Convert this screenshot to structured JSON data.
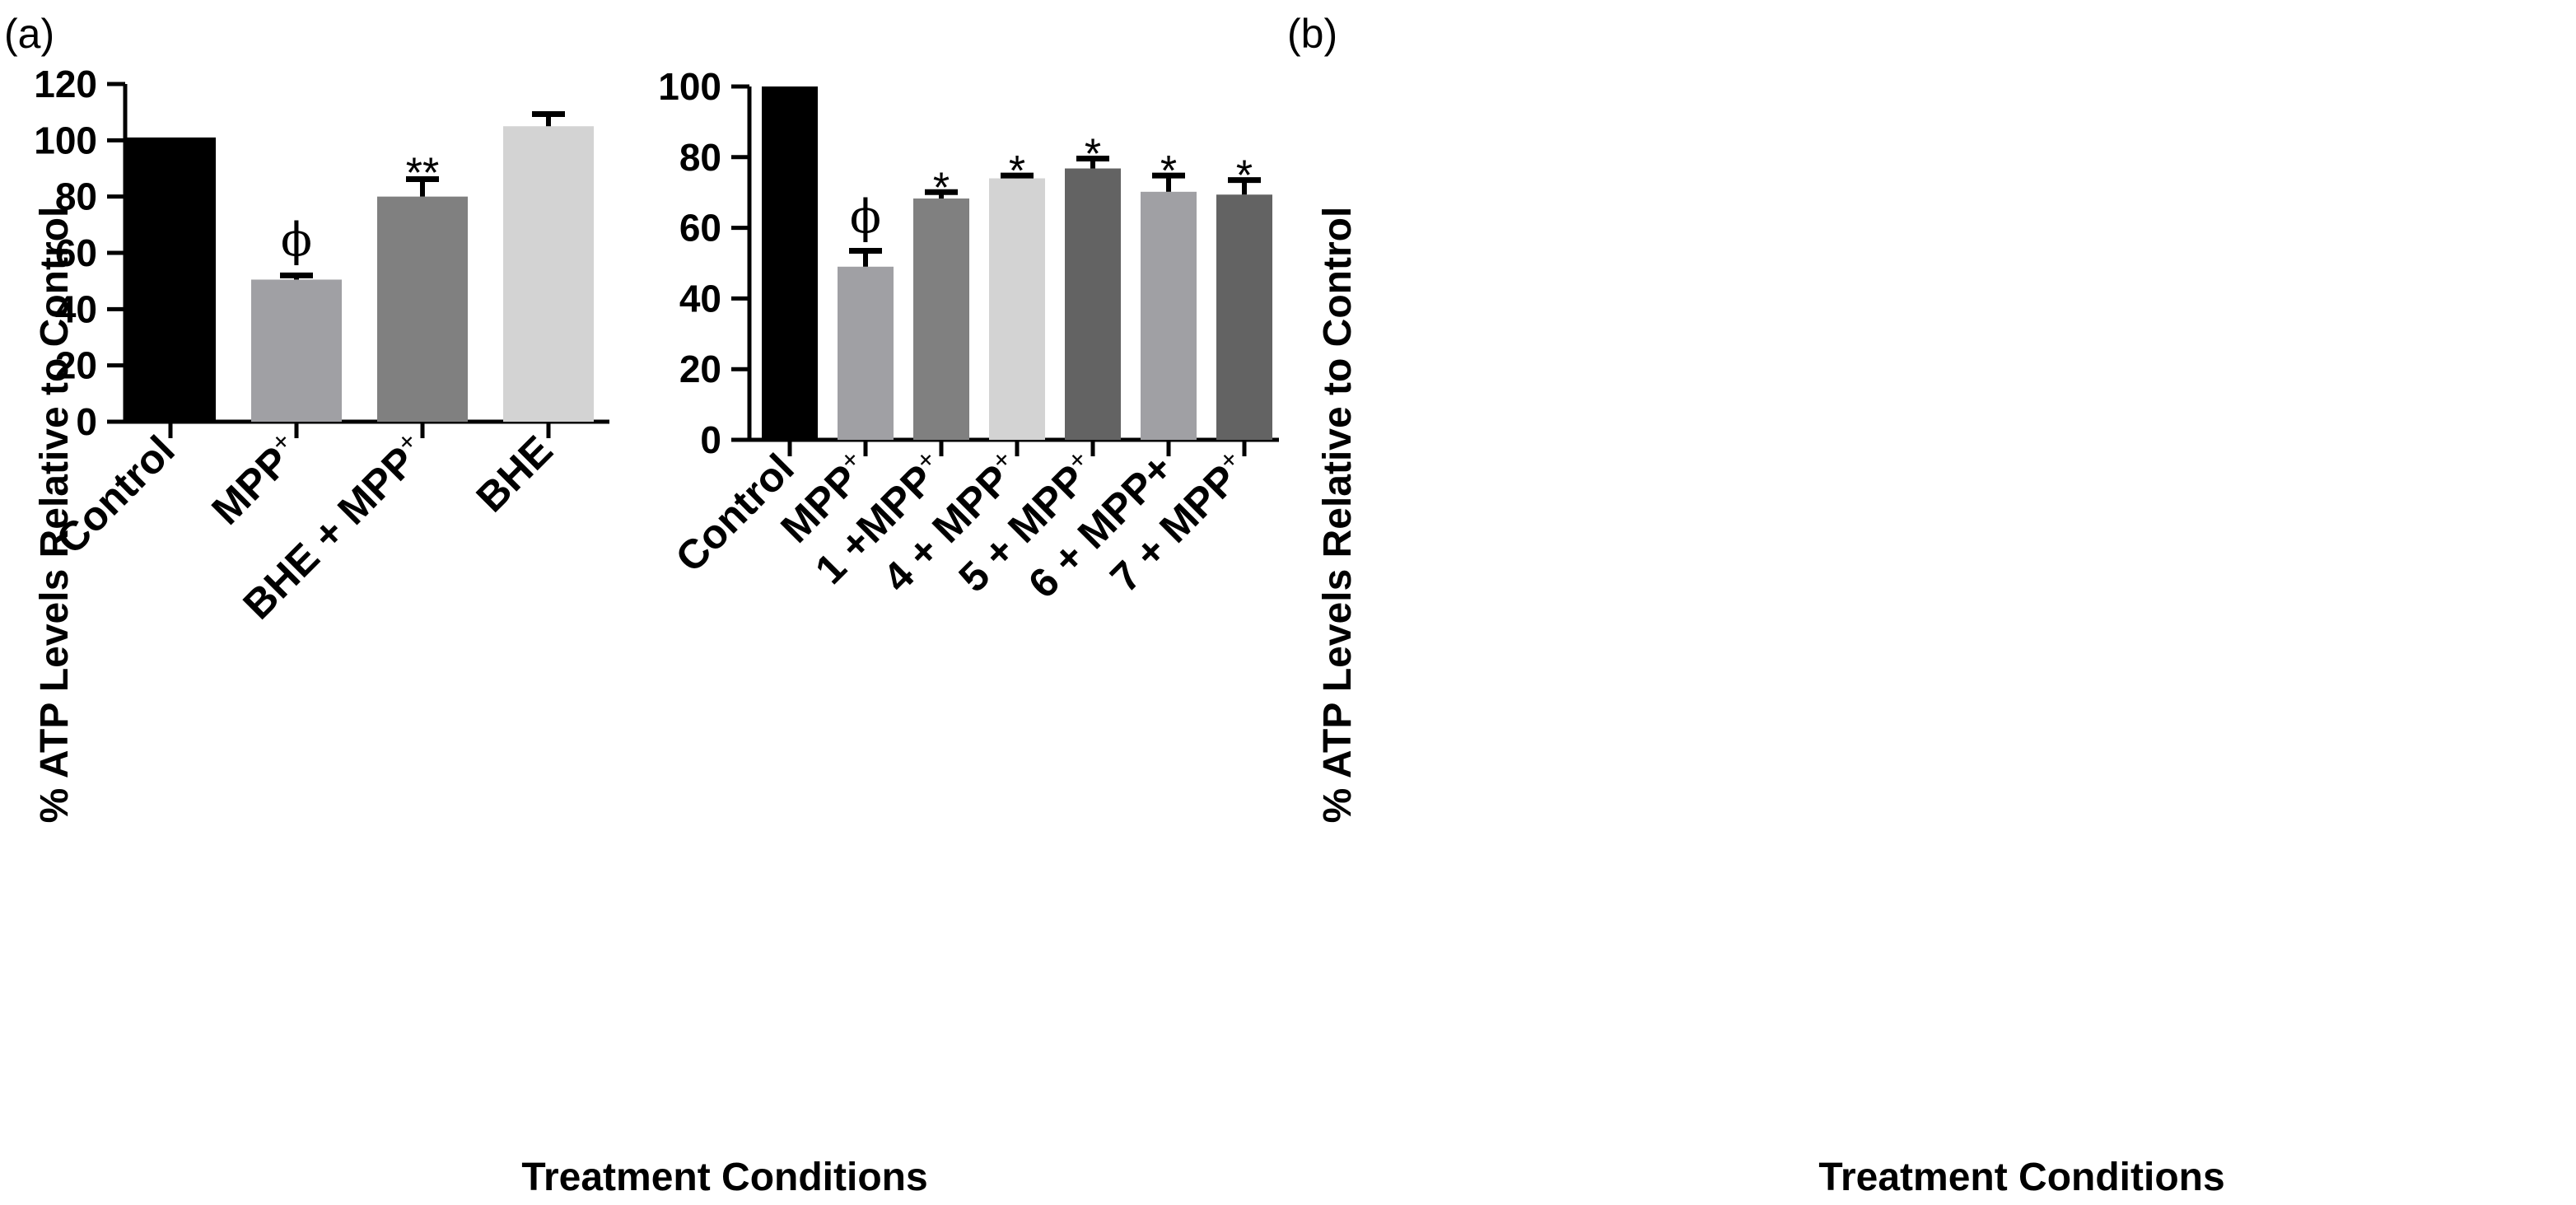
{
  "chart_data": [
    {
      "type": "bar",
      "panel": "(a)",
      "categories": [
        "Control",
        "MPP",
        "BHE + MPP",
        "BHE"
      ],
      "category_superscripts": [
        "",
        "+",
        "+",
        ""
      ],
      "values": [
        101,
        50.5,
        80,
        105
      ],
      "errors": [
        0,
        1.5,
        6.2,
        4.3
      ],
      "annotations": [
        "",
        "ϕ",
        "**",
        ""
      ],
      "colors": [
        "#000000",
        "#a0a0a4",
        "#808080",
        "#d3d3d3"
      ],
      "ylim": [
        0,
        120
      ],
      "yticks": [
        0,
        20,
        40,
        60,
        80,
        100,
        120
      ],
      "ylabel": "% ATP Levels Relative to Control",
      "xlabel": "Treatment Conditions"
    },
    {
      "type": "bar",
      "panel": "(b)",
      "categories": [
        "Control",
        "MPP",
        "1 +MPP",
        "4 + MPP",
        "5 + MPP",
        "6 + MPP+",
        "7 + MPP"
      ],
      "category_superscripts": [
        "",
        "+",
        "+",
        "+",
        "+",
        "",
        "+"
      ],
      "values": [
        100,
        49,
        68.3,
        74,
        76.8,
        70.2,
        69.4
      ],
      "errors": [
        0,
        4.5,
        1.8,
        0.8,
        2.8,
        4.6,
        4.1
      ],
      "annotations": [
        "",
        "ϕ",
        "*",
        "*",
        "*",
        "*",
        "*"
      ],
      "colors": [
        "#000000",
        "#a0a0a4",
        "#808080",
        "#d3d3d3",
        "#636363",
        "#a0a0a4",
        "#636363"
      ],
      "ylim": [
        0,
        100
      ],
      "yticks": [
        0,
        20,
        40,
        60,
        80,
        100
      ],
      "ylabel": "% ATP Levels Relative to Control",
      "xlabel": "Treatment Conditions"
    }
  ]
}
